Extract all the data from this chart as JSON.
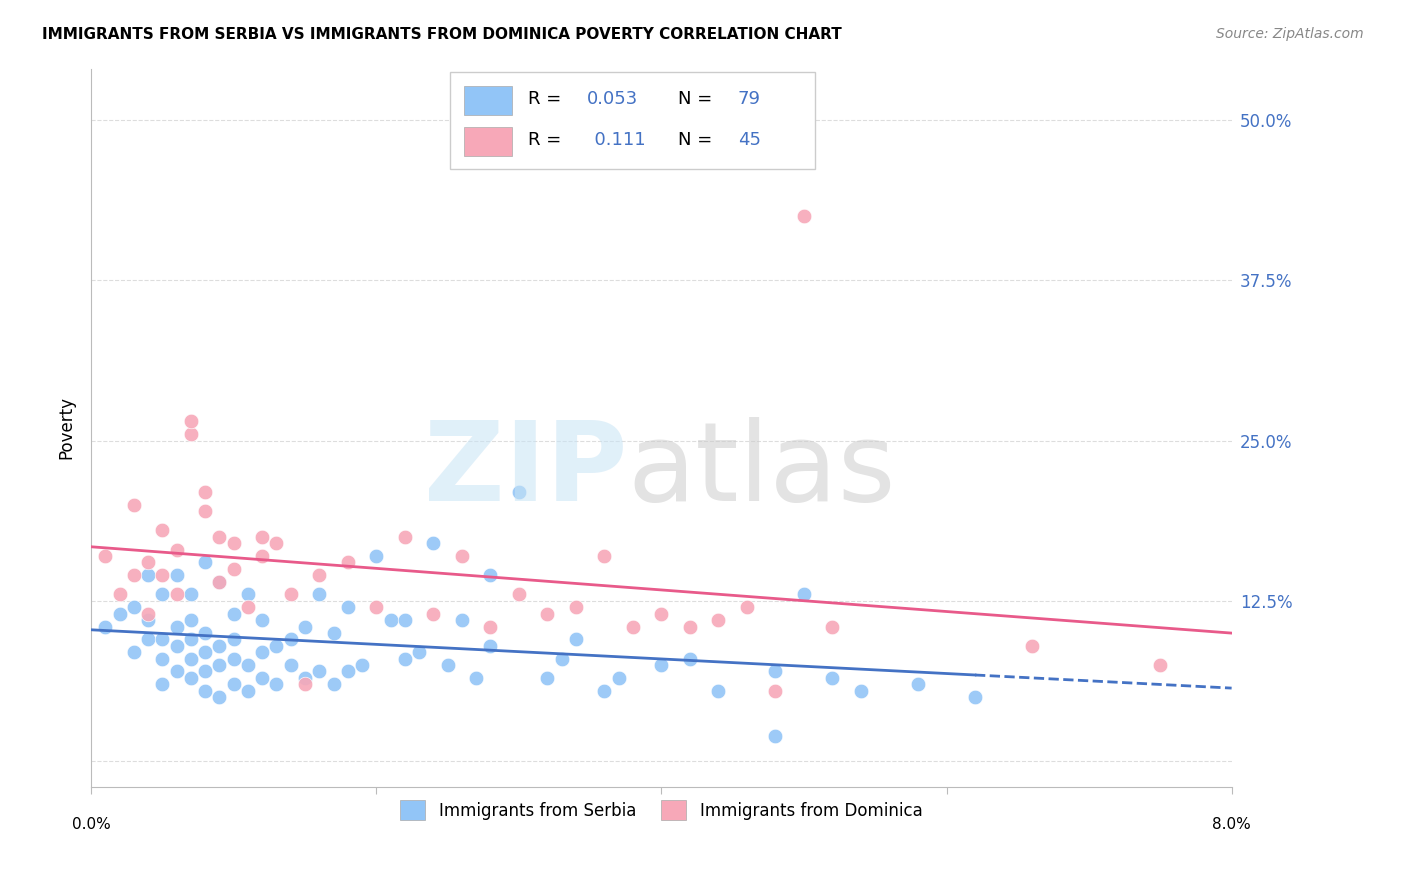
{
  "title": "IMMIGRANTS FROM SERBIA VS IMMIGRANTS FROM DOMINICA POVERTY CORRELATION CHART",
  "source": "Source: ZipAtlas.com",
  "ylabel": "Poverty",
  "yticks": [
    0.0,
    0.125,
    0.25,
    0.375,
    0.5
  ],
  "ytick_labels": [
    "",
    "12.5%",
    "25.0%",
    "37.5%",
    "50.0%"
  ],
  "xlim": [
    0.0,
    0.08
  ],
  "ylim": [
    -0.02,
    0.54
  ],
  "serbia_R": 0.053,
  "serbia_N": 79,
  "dominica_R": 0.111,
  "dominica_N": 45,
  "serbia_color": "#92C5F7",
  "dominica_color": "#F7A8B8",
  "serbia_line_color": "#4472C4",
  "dominica_line_color": "#E85A8A",
  "legend_text_color": "#4472C4",
  "serbia_points_x": [
    0.001,
    0.002,
    0.003,
    0.003,
    0.004,
    0.004,
    0.004,
    0.005,
    0.005,
    0.005,
    0.005,
    0.006,
    0.006,
    0.006,
    0.006,
    0.007,
    0.007,
    0.007,
    0.007,
    0.007,
    0.008,
    0.008,
    0.008,
    0.008,
    0.008,
    0.009,
    0.009,
    0.009,
    0.009,
    0.01,
    0.01,
    0.01,
    0.01,
    0.011,
    0.011,
    0.011,
    0.012,
    0.012,
    0.012,
    0.013,
    0.013,
    0.014,
    0.014,
    0.015,
    0.015,
    0.016,
    0.016,
    0.017,
    0.017,
    0.018,
    0.018,
    0.019,
    0.02,
    0.021,
    0.022,
    0.022,
    0.023,
    0.024,
    0.025,
    0.026,
    0.027,
    0.028,
    0.028,
    0.03,
    0.032,
    0.033,
    0.034,
    0.036,
    0.037,
    0.04,
    0.042,
    0.044,
    0.048,
    0.05,
    0.052,
    0.054,
    0.058,
    0.062,
    0.048
  ],
  "serbia_points_y": [
    0.105,
    0.115,
    0.085,
    0.12,
    0.095,
    0.11,
    0.145,
    0.06,
    0.08,
    0.095,
    0.13,
    0.07,
    0.09,
    0.105,
    0.145,
    0.065,
    0.08,
    0.095,
    0.11,
    0.13,
    0.055,
    0.07,
    0.085,
    0.1,
    0.155,
    0.05,
    0.075,
    0.09,
    0.14,
    0.06,
    0.08,
    0.095,
    0.115,
    0.055,
    0.075,
    0.13,
    0.065,
    0.085,
    0.11,
    0.06,
    0.09,
    0.075,
    0.095,
    0.065,
    0.105,
    0.07,
    0.13,
    0.06,
    0.1,
    0.07,
    0.12,
    0.075,
    0.16,
    0.11,
    0.08,
    0.11,
    0.085,
    0.17,
    0.075,
    0.11,
    0.065,
    0.09,
    0.145,
    0.21,
    0.065,
    0.08,
    0.095,
    0.055,
    0.065,
    0.075,
    0.08,
    0.055,
    0.07,
    0.13,
    0.065,
    0.055,
    0.06,
    0.05,
    0.02
  ],
  "dominica_points_x": [
    0.001,
    0.002,
    0.003,
    0.003,
    0.004,
    0.004,
    0.005,
    0.005,
    0.006,
    0.006,
    0.007,
    0.007,
    0.008,
    0.008,
    0.009,
    0.009,
    0.01,
    0.01,
    0.011,
    0.012,
    0.012,
    0.013,
    0.014,
    0.015,
    0.016,
    0.018,
    0.02,
    0.022,
    0.024,
    0.026,
    0.028,
    0.03,
    0.032,
    0.034,
    0.036,
    0.038,
    0.04,
    0.042,
    0.044,
    0.046,
    0.048,
    0.05,
    0.052,
    0.066,
    0.075
  ],
  "dominica_points_y": [
    0.16,
    0.13,
    0.145,
    0.2,
    0.115,
    0.155,
    0.145,
    0.18,
    0.13,
    0.165,
    0.255,
    0.265,
    0.195,
    0.21,
    0.14,
    0.175,
    0.15,
    0.17,
    0.12,
    0.16,
    0.175,
    0.17,
    0.13,
    0.06,
    0.145,
    0.155,
    0.12,
    0.175,
    0.115,
    0.16,
    0.105,
    0.13,
    0.115,
    0.12,
    0.16,
    0.105,
    0.115,
    0.105,
    0.11,
    0.12,
    0.055,
    0.425,
    0.105,
    0.09,
    0.075
  ]
}
